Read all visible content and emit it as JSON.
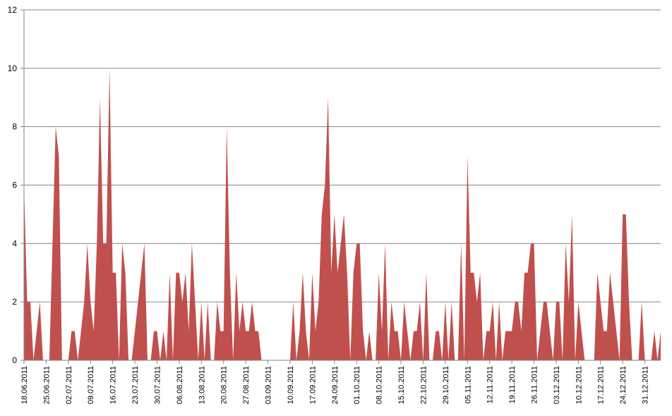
{
  "chart_data": {
    "type": "area",
    "title": "",
    "xlabel": "",
    "ylabel": "",
    "ylim": [
      0,
      12
    ],
    "yticks": [
      0,
      2,
      4,
      6,
      8,
      10,
      12
    ],
    "grid": true,
    "color": "#C0504D",
    "x_start": "18.06.2011",
    "x_end": "31.12.2011",
    "xticks": [
      "18.06.2011",
      "25.06.2011",
      "02.07.2011",
      "09.07.2011",
      "16.07.2011",
      "23.07.2011",
      "30.07.2011",
      "06.08.2011",
      "13.08.2011",
      "20.08.2011",
      "27.08.2011",
      "03.09.2011",
      "10.09.2011",
      "17.09.2011",
      "24.09.2011",
      "01.10.2011",
      "08.10.2011",
      "15.10.2011",
      "22.10.2011",
      "29.10.2011",
      "05.11.2011",
      "12.11.2011",
      "19.11.2011",
      "26.11.2011",
      "03.12.2011",
      "10.12.2011",
      "17.12.2011",
      "24.12.2011",
      "31.12.2011"
    ],
    "values": [
      6,
      2,
      2,
      0,
      1,
      2,
      0,
      0,
      0,
      4,
      8,
      7,
      0,
      0,
      0,
      1,
      1,
      0,
      1,
      2,
      4,
      2,
      1,
      4,
      9,
      4,
      4,
      10,
      3,
      3,
      0,
      4,
      3,
      0,
      0,
      1,
      2,
      3,
      4,
      0,
      0,
      1,
      1,
      0,
      1,
      0,
      3,
      0,
      3,
      3,
      2,
      3,
      1,
      4,
      2,
      0,
      2,
      0,
      2,
      0,
      0,
      2,
      1,
      1,
      8,
      3,
      0,
      3,
      1,
      2,
      1,
      1,
      2,
      1,
      1,
      0,
      0,
      0,
      0,
      0,
      0,
      0,
      0,
      0,
      0,
      2,
      0,
      1,
      3,
      1,
      0,
      3,
      1,
      2,
      5,
      6,
      9,
      3,
      5,
      3,
      4,
      5,
      3,
      0,
      3,
      4,
      4,
      1,
      0,
      1,
      0,
      0,
      3,
      1,
      4,
      0,
      2,
      1,
      1,
      0,
      2,
      1,
      0,
      1,
      1,
      2,
      0,
      3,
      0,
      0,
      1,
      1,
      0,
      2,
      0,
      2,
      0,
      0,
      4,
      0,
      7,
      3,
      3,
      2,
      3,
      0,
      1,
      1,
      2,
      0,
      2,
      0,
      1,
      1,
      1,
      2,
      2,
      1,
      3,
      3,
      4,
      4,
      0,
      1,
      2,
      2,
      1,
      0,
      2,
      2,
      0,
      4,
      2,
      5,
      0,
      2,
      1,
      0,
      0,
      0,
      0,
      3,
      2,
      1,
      1,
      3,
      2,
      1,
      0,
      5,
      5,
      2,
      0,
      0,
      0,
      2,
      0,
      0,
      0,
      1,
      0,
      1
    ]
  }
}
